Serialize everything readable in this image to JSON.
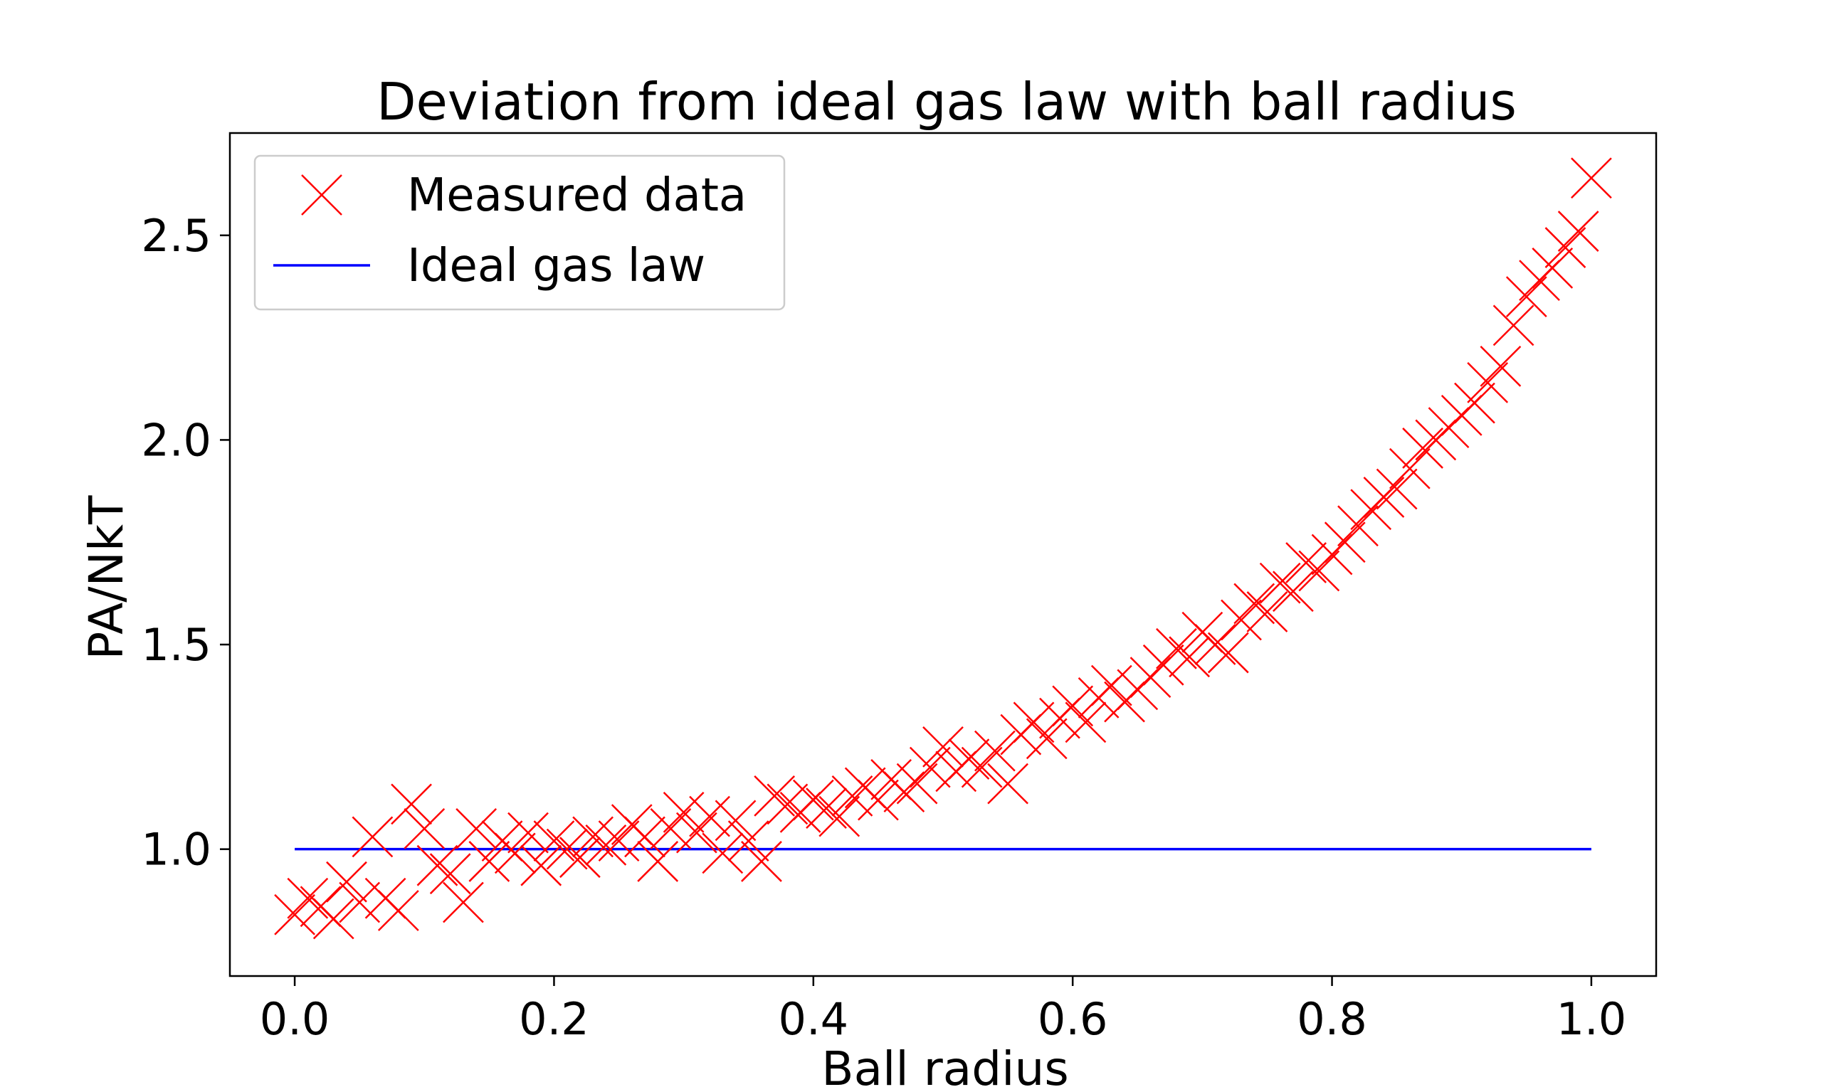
{
  "chart_data": {
    "type": "scatter",
    "title": "Deviation from ideal gas law with ball radius",
    "xlabel": "Ball radius",
    "ylabel": "PA/NkT",
    "xlim": [
      -0.05,
      1.05
    ],
    "ylim": [
      0.69,
      2.75
    ],
    "xticks": [
      0.0,
      0.2,
      0.4,
      0.6,
      0.8,
      1.0
    ],
    "xtick_labels": [
      "0.0",
      "0.2",
      "0.4",
      "0.6",
      "0.8",
      "1.0"
    ],
    "yticks": [
      1.0,
      1.5,
      2.0,
      2.5
    ],
    "ytick_labels": [
      "1.0",
      "1.5",
      "2.0",
      "2.5"
    ],
    "grid": false,
    "legend_position": "top-left",
    "series": [
      {
        "name": "Measured data",
        "marker": "x",
        "color": "#ff0000",
        "x": [
          0.0,
          0.01,
          0.02,
          0.03,
          0.04,
          0.05,
          0.06,
          0.07,
          0.08,
          0.09,
          0.1,
          0.11,
          0.12,
          0.13,
          0.14,
          0.15,
          0.16,
          0.17,
          0.18,
          0.19,
          0.2,
          0.21,
          0.22,
          0.23,
          0.24,
          0.25,
          0.26,
          0.27,
          0.28,
          0.29,
          0.3,
          0.31,
          0.32,
          0.33,
          0.34,
          0.35,
          0.36,
          0.37,
          0.38,
          0.39,
          0.4,
          0.41,
          0.42,
          0.43,
          0.44,
          0.45,
          0.46,
          0.47,
          0.48,
          0.49,
          0.5,
          0.51,
          0.52,
          0.53,
          0.54,
          0.55,
          0.56,
          0.57,
          0.58,
          0.59,
          0.6,
          0.61,
          0.62,
          0.63,
          0.64,
          0.65,
          0.66,
          0.67,
          0.68,
          0.69,
          0.7,
          0.71,
          0.72,
          0.73,
          0.74,
          0.75,
          0.76,
          0.77,
          0.78,
          0.79,
          0.8,
          0.81,
          0.82,
          0.83,
          0.84,
          0.85,
          0.86,
          0.87,
          0.88,
          0.89,
          0.9,
          0.91,
          0.92,
          0.93,
          0.94,
          0.95,
          0.96,
          0.97,
          0.98,
          0.99,
          1.0
        ],
        "y": [
          0.84,
          0.88,
          0.86,
          0.83,
          0.92,
          0.87,
          1.03,
          0.88,
          0.85,
          1.11,
          1.05,
          0.96,
          0.94,
          0.87,
          1.05,
          0.97,
          1.02,
          0.99,
          1.04,
          0.96,
          1.02,
          1.0,
          0.98,
          1.03,
          1.01,
          1.02,
          1.06,
          1.03,
          0.97,
          1.05,
          1.09,
          1.04,
          1.08,
          0.99,
          1.07,
          1.02,
          0.97,
          1.13,
          1.11,
          1.09,
          1.12,
          1.1,
          1.08,
          1.13,
          1.15,
          1.12,
          1.17,
          1.14,
          1.16,
          1.2,
          1.25,
          1.19,
          1.22,
          1.2,
          1.24,
          1.16,
          1.28,
          1.31,
          1.27,
          1.32,
          1.35,
          1.31,
          1.37,
          1.4,
          1.36,
          1.39,
          1.42,
          1.45,
          1.49,
          1.47,
          1.53,
          1.5,
          1.48,
          1.56,
          1.6,
          1.58,
          1.65,
          1.63,
          1.7,
          1.68,
          1.72,
          1.75,
          1.79,
          1.83,
          1.86,
          1.88,
          1.93,
          1.98,
          2.0,
          2.03,
          2.06,
          2.09,
          2.14,
          2.18,
          2.28,
          2.35,
          2.39,
          2.42,
          2.47,
          2.51,
          2.64
        ]
      },
      {
        "name": "Ideal gas law",
        "type": "line",
        "color": "#0000ff",
        "x": [
          0.0,
          1.0
        ],
        "y": [
          1.0,
          1.0
        ]
      }
    ]
  }
}
